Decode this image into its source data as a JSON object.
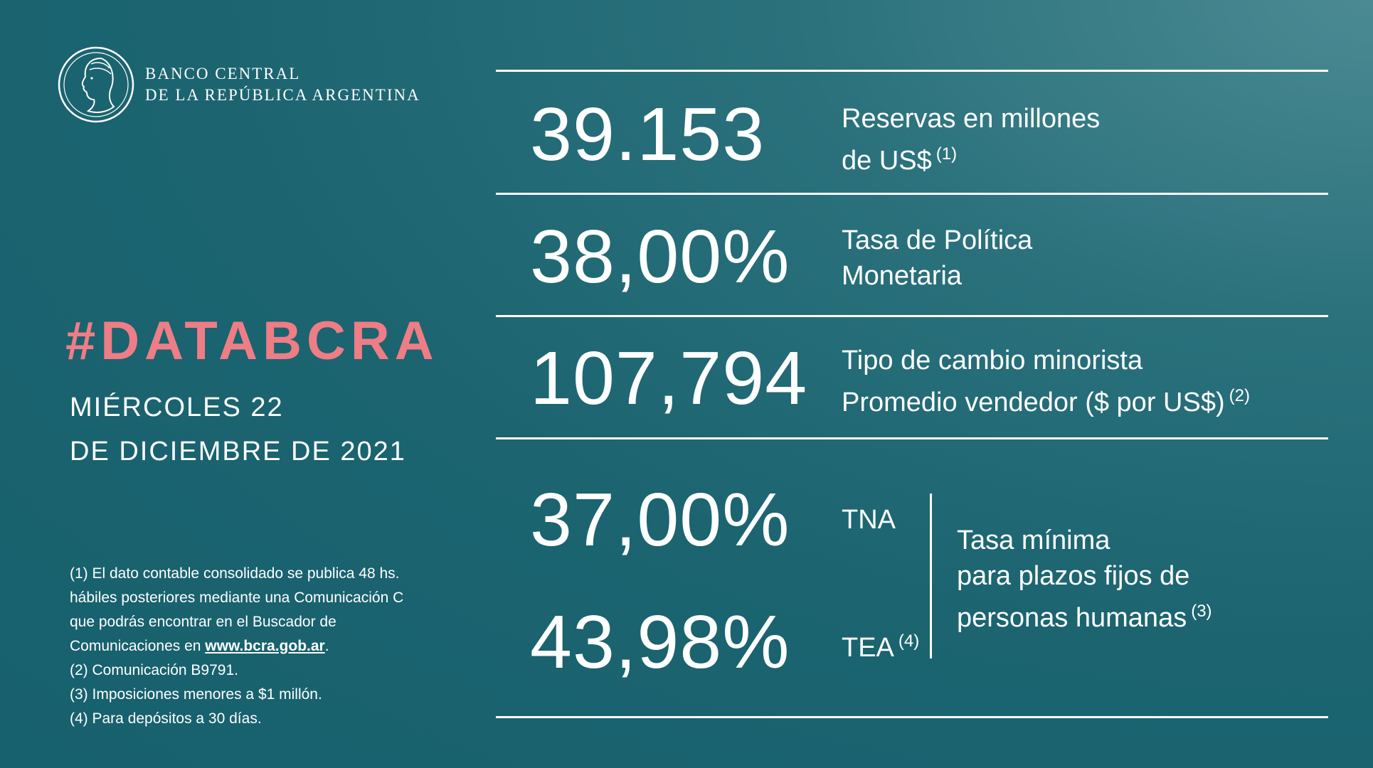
{
  "logo": {
    "line1": "BANCO CENTRAL",
    "line2": "DE LA REPÚBLICA ARGENTINA",
    "icon": "bcra-seal-icon"
  },
  "title": {
    "hashtag": "#DATABCRA",
    "date_line1": "MIÉRCOLES 22",
    "date_line2": "DE DICIEMBRE DE 2021"
  },
  "notes": {
    "n1_a": "(1) El dato contable consolidado se publica 48 hs.",
    "n1_b": "hábiles posteriores mediante una Comunicación C",
    "n1_c": "que podrás encontrar en el Buscador de",
    "n1_d": "Comunicaciones en ",
    "n1_link": "www.bcra.gob.ar",
    "n1_end": ".",
    "n2": "(2) Comunicación B9791.",
    "n3": "(3) Imposiciones menores a $1 millón.",
    "n4": "(4) Para depósitos a 30 días."
  },
  "stats": {
    "reservas": {
      "value": "39.153",
      "label1": "Reservas en millones",
      "label2": "de US$",
      "note": "(1)"
    },
    "tasa_politica": {
      "value": "38,00%",
      "label1": "Tasa de Política",
      "label2": "Monetaria"
    },
    "tipo_cambio": {
      "value": "107,794",
      "label1": "Tipo de cambio minorista",
      "label2": "Promedio vendedor ($ por US$)",
      "note": "(2)"
    },
    "plazo_fijo": {
      "tna_value": "37,00%",
      "tna_label": "TNA",
      "tea_value": "43,98%",
      "tea_label": "TEA",
      "tea_note": "(4)",
      "desc1": "Tasa mínima",
      "desc2": "para plazos fijos de",
      "desc3": "personas humanas",
      "desc_note": "(3)"
    }
  },
  "colors": {
    "accent": "#ee7d86",
    "background": "#17606d",
    "text": "#ffffff"
  }
}
